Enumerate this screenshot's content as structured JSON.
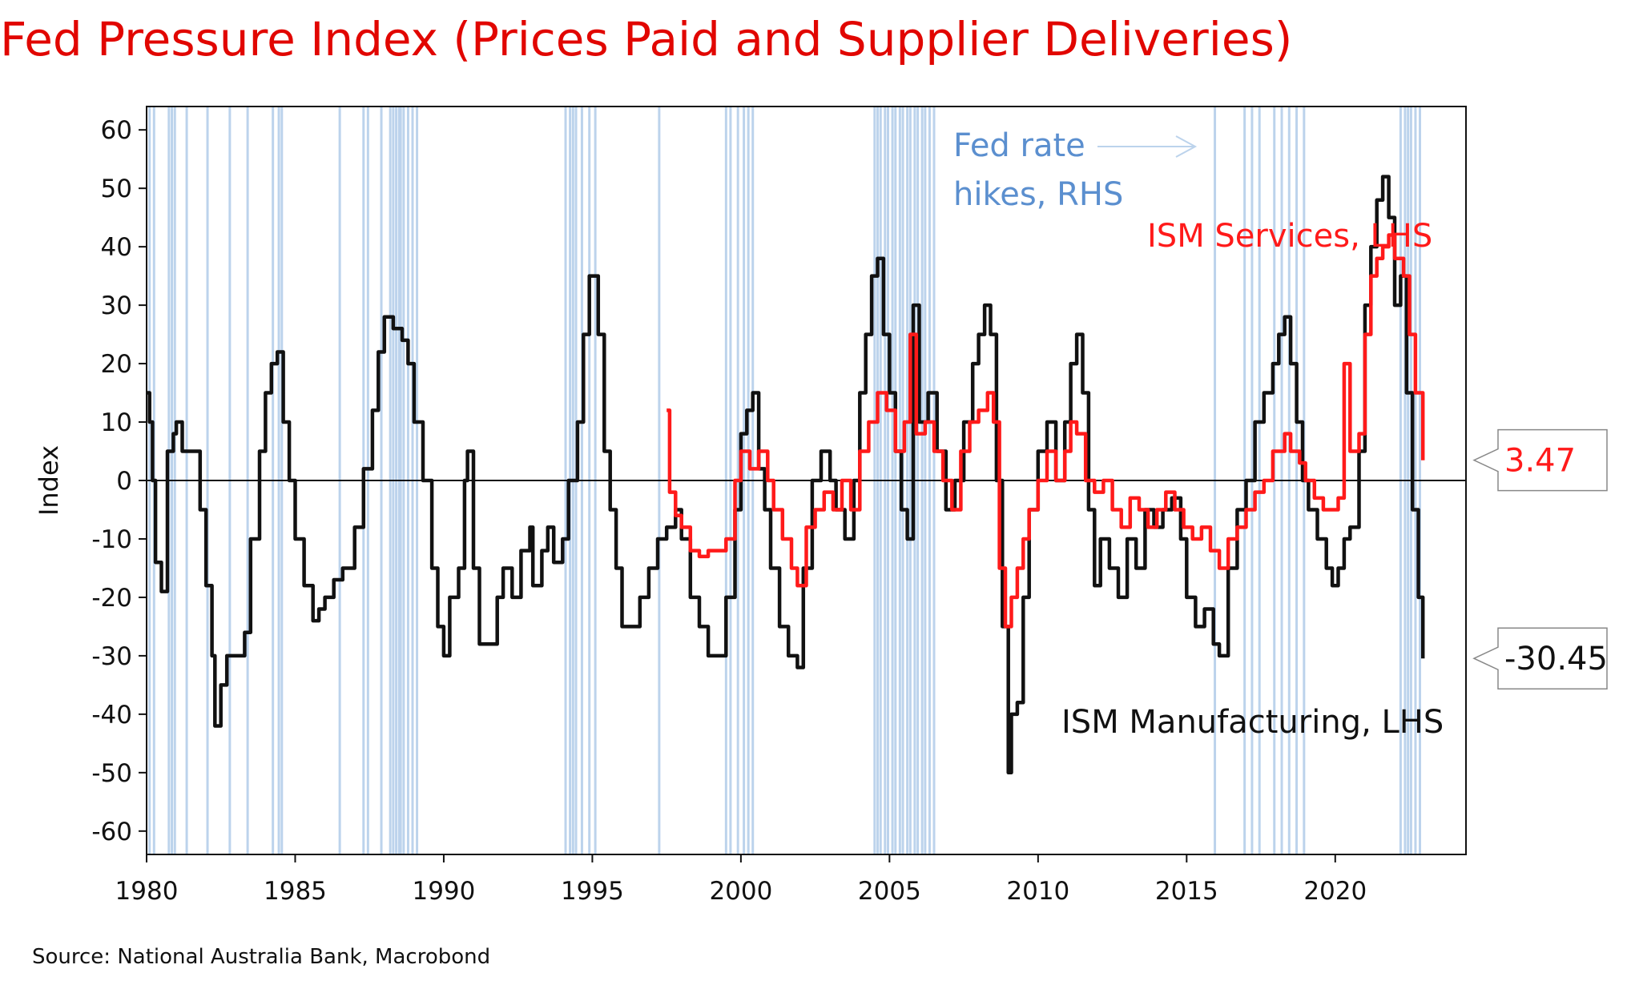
{
  "title": "Fed Pressure Index (Prices Paid and Supplier Deliveries)",
  "source": "Source: National Australia Bank, Macrobond",
  "colors": {
    "title": "#e10600",
    "manufacturing": "#111111",
    "services": "#ff1a1a",
    "fed_hikes": "#bcd3ec",
    "fed_hikes_label": "#5b8fcf"
  },
  "chart_data": {
    "type": "line",
    "title": "Fed Pressure Index (Prices Paid and Supplier Deliveries)",
    "xlabel": "",
    "ylabel": "Index",
    "xlim": [
      1980,
      2024.4
    ],
    "ylim": [
      -64,
      64
    ],
    "x_ticks": [
      1980,
      1985,
      1990,
      1995,
      2000,
      2005,
      2010,
      2015,
      2020
    ],
    "y_ticks": [
      60,
      50,
      40,
      30,
      20,
      10,
      0,
      -10,
      -20,
      -30,
      -40,
      -50,
      -60
    ],
    "grid": false,
    "zero_line": true,
    "series": [
      {
        "name": "ISM Manufacturing, LHS",
        "label": "ISM Manufacturing, LHS",
        "color": "#111111",
        "last_value": "-30.45",
        "points": [
          [
            1980.0,
            15
          ],
          [
            1980.1,
            10
          ],
          [
            1980.2,
            0
          ],
          [
            1980.3,
            -14
          ],
          [
            1980.5,
            -19
          ],
          [
            1980.7,
            5
          ],
          [
            1980.9,
            8
          ],
          [
            1981.0,
            10
          ],
          [
            1981.2,
            5
          ],
          [
            1981.5,
            5
          ],
          [
            1981.8,
            -5
          ],
          [
            1982.0,
            -18
          ],
          [
            1982.2,
            -30
          ],
          [
            1982.3,
            -42
          ],
          [
            1982.5,
            -35
          ],
          [
            1982.7,
            -30
          ],
          [
            1983.0,
            -30
          ],
          [
            1983.3,
            -26
          ],
          [
            1983.5,
            -10
          ],
          [
            1983.8,
            5
          ],
          [
            1984.0,
            15
          ],
          [
            1984.2,
            20
          ],
          [
            1984.4,
            22
          ],
          [
            1984.6,
            10
          ],
          [
            1984.8,
            0
          ],
          [
            1985.0,
            -10
          ],
          [
            1985.3,
            -18
          ],
          [
            1985.6,
            -24
          ],
          [
            1985.8,
            -22
          ],
          [
            1986.0,
            -20
          ],
          [
            1986.3,
            -17
          ],
          [
            1986.6,
            -15
          ],
          [
            1987.0,
            -8
          ],
          [
            1987.3,
            2
          ],
          [
            1987.6,
            12
          ],
          [
            1987.8,
            22
          ],
          [
            1988.0,
            28
          ],
          [
            1988.3,
            26
          ],
          [
            1988.6,
            24
          ],
          [
            1988.8,
            20
          ],
          [
            1989.0,
            10
          ],
          [
            1989.3,
            0
          ],
          [
            1989.6,
            -15
          ],
          [
            1989.8,
            -25
          ],
          [
            1990.0,
            -30
          ],
          [
            1990.2,
            -20
          ],
          [
            1990.5,
            -15
          ],
          [
            1990.7,
            0
          ],
          [
            1990.8,
            5
          ],
          [
            1991.0,
            -15
          ],
          [
            1991.2,
            -28
          ],
          [
            1991.5,
            -28
          ],
          [
            1991.8,
            -20
          ],
          [
            1992.0,
            -15
          ],
          [
            1992.3,
            -20
          ],
          [
            1992.6,
            -12
          ],
          [
            1992.9,
            -8
          ],
          [
            1993.0,
            -18
          ],
          [
            1993.3,
            -12
          ],
          [
            1993.5,
            -8
          ],
          [
            1993.7,
            -14
          ],
          [
            1994.0,
            -10
          ],
          [
            1994.2,
            0
          ],
          [
            1994.5,
            10
          ],
          [
            1994.7,
            25
          ],
          [
            1994.9,
            35
          ],
          [
            1995.0,
            35
          ],
          [
            1995.2,
            25
          ],
          [
            1995.4,
            5
          ],
          [
            1995.6,
            -5
          ],
          [
            1995.8,
            -15
          ],
          [
            1996.0,
            -25
          ],
          [
            1996.3,
            -25
          ],
          [
            1996.6,
            -20
          ],
          [
            1996.9,
            -15
          ],
          [
            1997.2,
            -10
          ],
          [
            1997.5,
            -8
          ],
          [
            1997.8,
            -5
          ],
          [
            1998.0,
            -10
          ],
          [
            1998.3,
            -20
          ],
          [
            1998.6,
            -25
          ],
          [
            1998.9,
            -30
          ],
          [
            1999.2,
            -30
          ],
          [
            1999.5,
            -20
          ],
          [
            1999.8,
            -5
          ],
          [
            2000.0,
            8
          ],
          [
            2000.2,
            12
          ],
          [
            2000.4,
            15
          ],
          [
            2000.6,
            2
          ],
          [
            2000.8,
            -5
          ],
          [
            2001.0,
            -15
          ],
          [
            2001.3,
            -25
          ],
          [
            2001.6,
            -30
          ],
          [
            2001.9,
            -32
          ],
          [
            2002.1,
            -15
          ],
          [
            2002.4,
            0
          ],
          [
            2002.7,
            5
          ],
          [
            2003.0,
            0
          ],
          [
            2003.2,
            -5
          ],
          [
            2003.5,
            -10
          ],
          [
            2003.8,
            0
          ],
          [
            2004.0,
            15
          ],
          [
            2004.2,
            25
          ],
          [
            2004.4,
            35
          ],
          [
            2004.6,
            38
          ],
          [
            2004.8,
            25
          ],
          [
            2005.0,
            15
          ],
          [
            2005.2,
            5
          ],
          [
            2005.4,
            -5
          ],
          [
            2005.6,
            -10
          ],
          [
            2005.8,
            30
          ],
          [
            2006.0,
            10
          ],
          [
            2006.3,
            15
          ],
          [
            2006.6,
            5
          ],
          [
            2006.9,
            -5
          ],
          [
            2007.2,
            0
          ],
          [
            2007.5,
            10
          ],
          [
            2007.8,
            20
          ],
          [
            2008.0,
            25
          ],
          [
            2008.2,
            30
          ],
          [
            2008.4,
            25
          ],
          [
            2008.6,
            0
          ],
          [
            2008.8,
            -25
          ],
          [
            2009.0,
            -50
          ],
          [
            2009.1,
            -40
          ],
          [
            2009.3,
            -38
          ],
          [
            2009.5,
            -20
          ],
          [
            2009.7,
            -5
          ],
          [
            2010.0,
            5
          ],
          [
            2010.3,
            10
          ],
          [
            2010.6,
            0
          ],
          [
            2010.9,
            10
          ],
          [
            2011.1,
            20
          ],
          [
            2011.3,
            25
          ],
          [
            2011.5,
            15
          ],
          [
            2011.7,
            -5
          ],
          [
            2011.9,
            -18
          ],
          [
            2012.1,
            -10
          ],
          [
            2012.4,
            -15
          ],
          [
            2012.7,
            -20
          ],
          [
            2013.0,
            -10
          ],
          [
            2013.3,
            -15
          ],
          [
            2013.6,
            -5
          ],
          [
            2013.9,
            -8
          ],
          [
            2014.2,
            -5
          ],
          [
            2014.5,
            -3
          ],
          [
            2014.8,
            -10
          ],
          [
            2015.0,
            -20
          ],
          [
            2015.3,
            -25
          ],
          [
            2015.6,
            -22
          ],
          [
            2015.9,
            -28
          ],
          [
            2016.1,
            -30
          ],
          [
            2016.4,
            -15
          ],
          [
            2016.7,
            -5
          ],
          [
            2017.0,
            0
          ],
          [
            2017.3,
            10
          ],
          [
            2017.6,
            15
          ],
          [
            2017.9,
            20
          ],
          [
            2018.1,
            25
          ],
          [
            2018.3,
            28
          ],
          [
            2018.5,
            20
          ],
          [
            2018.7,
            10
          ],
          [
            2018.9,
            0
          ],
          [
            2019.1,
            -5
          ],
          [
            2019.4,
            -10
          ],
          [
            2019.7,
            -15
          ],
          [
            2019.9,
            -18
          ],
          [
            2020.1,
            -15
          ],
          [
            2020.3,
            -10
          ],
          [
            2020.5,
            -8
          ],
          [
            2020.8,
            5
          ],
          [
            2021.0,
            30
          ],
          [
            2021.2,
            40
          ],
          [
            2021.4,
            48
          ],
          [
            2021.6,
            52
          ],
          [
            2021.8,
            45
          ],
          [
            2022.0,
            30
          ],
          [
            2022.2,
            35
          ],
          [
            2022.4,
            15
          ],
          [
            2022.6,
            -5
          ],
          [
            2022.8,
            -20
          ],
          [
            2022.95,
            -30.45
          ]
        ]
      },
      {
        "name": "ISM Services, LHS",
        "label": "ISM Services, LHS",
        "color": "#ff1a1a",
        "last_value": "3.47",
        "points": [
          [
            1997.5,
            12
          ],
          [
            1997.6,
            -2
          ],
          [
            1997.8,
            -6
          ],
          [
            1998.0,
            -8
          ],
          [
            1998.3,
            -12
          ],
          [
            1998.6,
            -13
          ],
          [
            1998.9,
            -12
          ],
          [
            1999.2,
            -12
          ],
          [
            1999.5,
            -10
          ],
          [
            1999.8,
            0
          ],
          [
            2000.0,
            5
          ],
          [
            2000.3,
            2
          ],
          [
            2000.6,
            5
          ],
          [
            2000.9,
            0
          ],
          [
            2001.1,
            -5
          ],
          [
            2001.4,
            -10
          ],
          [
            2001.7,
            -15
          ],
          [
            2001.9,
            -18
          ],
          [
            2002.2,
            -8
          ],
          [
            2002.5,
            -5
          ],
          [
            2002.8,
            -2
          ],
          [
            2003.1,
            -5
          ],
          [
            2003.4,
            0
          ],
          [
            2003.7,
            -5
          ],
          [
            2004.0,
            5
          ],
          [
            2004.3,
            10
          ],
          [
            2004.6,
            15
          ],
          [
            2004.9,
            12
          ],
          [
            2005.2,
            5
          ],
          [
            2005.5,
            10
          ],
          [
            2005.7,
            25
          ],
          [
            2005.9,
            8
          ],
          [
            2006.2,
            10
          ],
          [
            2006.5,
            5
          ],
          [
            2006.8,
            0
          ],
          [
            2007.1,
            -5
          ],
          [
            2007.4,
            5
          ],
          [
            2007.7,
            10
          ],
          [
            2008.0,
            12
          ],
          [
            2008.3,
            15
          ],
          [
            2008.5,
            10
          ],
          [
            2008.7,
            -15
          ],
          [
            2008.9,
            -25
          ],
          [
            2009.1,
            -20
          ],
          [
            2009.3,
            -15
          ],
          [
            2009.5,
            -10
          ],
          [
            2009.7,
            -5
          ],
          [
            2010.0,
            0
          ],
          [
            2010.3,
            5
          ],
          [
            2010.6,
            0
          ],
          [
            2010.9,
            5
          ],
          [
            2011.1,
            10
          ],
          [
            2011.3,
            8
          ],
          [
            2011.6,
            0
          ],
          [
            2011.9,
            -2
          ],
          [
            2012.2,
            0
          ],
          [
            2012.5,
            -5
          ],
          [
            2012.8,
            -8
          ],
          [
            2013.1,
            -3
          ],
          [
            2013.4,
            -5
          ],
          [
            2013.7,
            -8
          ],
          [
            2014.0,
            -5
          ],
          [
            2014.3,
            -2
          ],
          [
            2014.6,
            -5
          ],
          [
            2014.9,
            -8
          ],
          [
            2015.2,
            -10
          ],
          [
            2015.5,
            -8
          ],
          [
            2015.8,
            -12
          ],
          [
            2016.1,
            -15
          ],
          [
            2016.4,
            -10
          ],
          [
            2016.7,
            -8
          ],
          [
            2017.0,
            -5
          ],
          [
            2017.3,
            -2
          ],
          [
            2017.6,
            0
          ],
          [
            2017.9,
            5
          ],
          [
            2018.1,
            5
          ],
          [
            2018.3,
            8
          ],
          [
            2018.5,
            5
          ],
          [
            2018.8,
            3
          ],
          [
            2019.0,
            0
          ],
          [
            2019.3,
            -3
          ],
          [
            2019.6,
            -5
          ],
          [
            2019.9,
            -5
          ],
          [
            2020.1,
            -3
          ],
          [
            2020.3,
            20
          ],
          [
            2020.5,
            5
          ],
          [
            2020.8,
            8
          ],
          [
            2021.0,
            25
          ],
          [
            2021.2,
            35
          ],
          [
            2021.4,
            38
          ],
          [
            2021.6,
            40
          ],
          [
            2021.8,
            42
          ],
          [
            2022.0,
            38
          ],
          [
            2022.3,
            35
          ],
          [
            2022.5,
            25
          ],
          [
            2022.7,
            15
          ],
          [
            2022.95,
            3.47
          ]
        ]
      },
      {
        "name": "Fed rate hikes, RHS",
        "label": "Fed rate hikes, RHS",
        "color": "#bcd3ec",
        "hike_dates": [
          1980.1,
          1980.25,
          1980.75,
          1980.85,
          1980.95,
          1981.35,
          1982.05,
          1982.8,
          1983.4,
          1984.25,
          1984.45,
          1984.55,
          1986.5,
          1987.3,
          1987.45,
          1987.9,
          1988.2,
          1988.3,
          1988.4,
          1988.5,
          1988.55,
          1988.65,
          1988.8,
          1988.95,
          1989.1,
          1994.1,
          1994.25,
          1994.35,
          1994.45,
          1994.65,
          1994.9,
          1995.1,
          1997.25,
          1999.5,
          1999.65,
          1999.9,
          2000.1,
          2000.25,
          2000.4,
          2004.5,
          2004.6,
          2004.7,
          2004.85,
          2004.95,
          2005.1,
          2005.2,
          2005.35,
          2005.45,
          2005.6,
          2005.7,
          2005.85,
          2005.95,
          2006.1,
          2006.2,
          2006.35,
          2006.5,
          2015.95,
          2016.95,
          2017.2,
          2017.45,
          2017.95,
          2018.2,
          2018.45,
          2018.7,
          2018.95,
          2022.2,
          2022.35,
          2022.45,
          2022.55,
          2022.7,
          2022.85
        ]
      }
    ],
    "annotations": {
      "fed_label_line1": "Fed rate",
      "fed_label_line2": "hikes, RHS",
      "services_label": "ISM Services, LHS",
      "manufacturing_label": "ISM Manufacturing, LHS",
      "services_last": "3.47",
      "manufacturing_last": "-30.45"
    }
  }
}
